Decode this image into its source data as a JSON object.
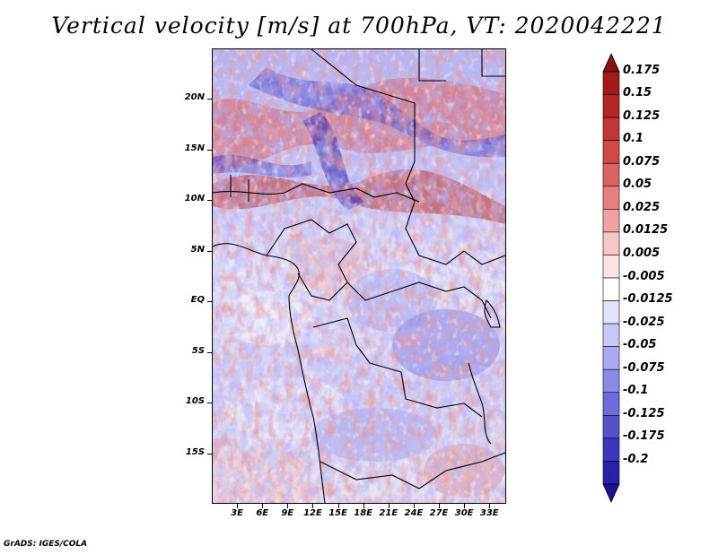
{
  "title": "Vertical velocity [m/s] at 700hPa, VT: 2020042221",
  "footer": "GrADS: IGES/COLA",
  "map": {
    "region": "Central Africa",
    "lon_range": [
      0,
      35
    ],
    "lat_range": [
      -20,
      25
    ],
    "lat_ticks": [
      {
        "label": "20N",
        "value": 20
      },
      {
        "label": "15N",
        "value": 15
      },
      {
        "label": "10N",
        "value": 10
      },
      {
        "label": "5N",
        "value": 5
      },
      {
        "label": "EQ",
        "value": 0
      },
      {
        "label": "5S",
        "value": -5
      },
      {
        "label": "10S",
        "value": -10
      },
      {
        "label": "15S",
        "value": -15
      }
    ],
    "lon_ticks": [
      {
        "label": "3E",
        "value": 3
      },
      {
        "label": "6E",
        "value": 6
      },
      {
        "label": "9E",
        "value": 9
      },
      {
        "label": "12E",
        "value": 12
      },
      {
        "label": "15E",
        "value": 15
      },
      {
        "label": "18E",
        "value": 18
      },
      {
        "label": "21E",
        "value": 21
      },
      {
        "label": "24E",
        "value": 24
      },
      {
        "label": "27E",
        "value": 27
      },
      {
        "label": "30E",
        "value": 30
      },
      {
        "label": "33E",
        "value": 33
      }
    ]
  },
  "colorbar": {
    "levels": [
      {
        "label": "0.175",
        "color": "#a31a1a"
      },
      {
        "label": "0.15",
        "color": "#b52626"
      },
      {
        "label": "0.125",
        "color": "#c43636"
      },
      {
        "label": "0.1",
        "color": "#d24848"
      },
      {
        "label": "0.075",
        "color": "#dd6262"
      },
      {
        "label": "0.05",
        "color": "#e67f7f"
      },
      {
        "label": "0.025",
        "color": "#f0a2a2"
      },
      {
        "label": "0.0125",
        "color": "#f7c6c6"
      },
      {
        "label": "0.005",
        "color": "#fbe3e3"
      },
      {
        "label": "-0.005",
        "color": "#ffffff"
      },
      {
        "label": "-0.0125",
        "color": "#e3e3fb"
      },
      {
        "label": "-0.025",
        "color": "#c9c9f6"
      },
      {
        "label": "-0.05",
        "color": "#abaaf0"
      },
      {
        "label": "-0.075",
        "color": "#8c8ae7"
      },
      {
        "label": "-0.1",
        "color": "#6e6bdc"
      },
      {
        "label": "-0.125",
        "color": "#5450ce"
      },
      {
        "label": "-0.175",
        "color": "#3c37bd"
      },
      {
        "label": "-0.2",
        "color": "#2820a8"
      }
    ],
    "top_arrow_color": "#8b1010",
    "bottom_arrow_color": "#1c1090"
  }
}
